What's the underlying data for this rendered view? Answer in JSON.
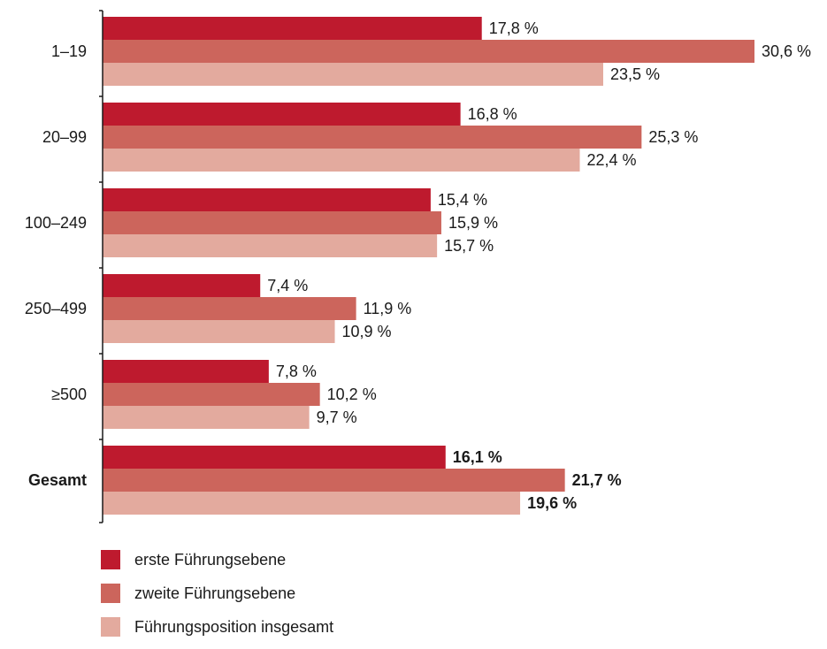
{
  "chart_data": {
    "type": "bar",
    "orientation": "horizontal",
    "categories": [
      "1–19",
      "20–99",
      "100–249",
      "250–499",
      "≥500",
      "Gesamt"
    ],
    "category_bold": [
      false,
      false,
      false,
      false,
      false,
      true
    ],
    "series": [
      {
        "name": "erste Führungsebene",
        "color": "#be1a2e",
        "values": [
          17.8,
          16.8,
          15.4,
          7.4,
          7.8,
          16.1
        ],
        "labels": [
          "17,8 %",
          "16,8 %",
          "15,4 %",
          "7,4 %",
          "7,8 %",
          "16,1 %"
        ]
      },
      {
        "name": "zweite Führungsebene",
        "color": "#cc655c",
        "values": [
          30.6,
          25.3,
          15.9,
          11.9,
          10.2,
          21.7
        ],
        "labels": [
          "30,6 %",
          "25,3 %",
          "15,9 %",
          "11,9 %",
          "10,2 %",
          "21,7 %"
        ]
      },
      {
        "name": "Führungsposition insgesamt",
        "color": "#e3aa9e",
        "values": [
          23.5,
          22.4,
          15.7,
          10.9,
          9.7,
          19.6
        ],
        "labels": [
          "23,5 %",
          "22,4 %",
          "15,7 %",
          "10,9 %",
          "9,7 %",
          "19,6 %"
        ]
      }
    ],
    "xlim": [
      0,
      30.6
    ],
    "legend_position": "bottom-left",
    "grid": false
  }
}
